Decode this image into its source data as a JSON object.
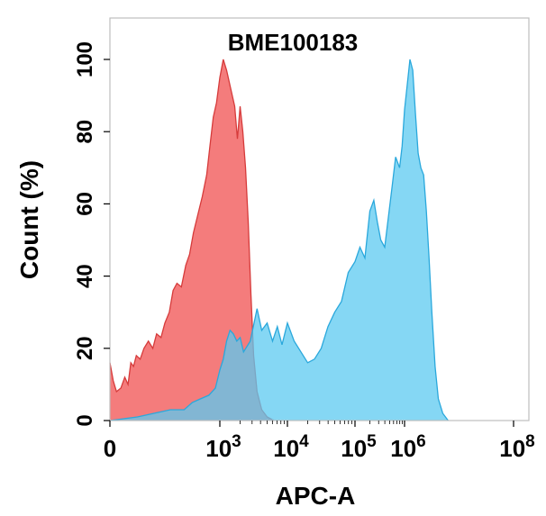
{
  "chart_data": {
    "type": "area",
    "title": "BME100183",
    "xlabel": "APC-A",
    "ylabel": "Count (%)",
    "ylim": [
      0,
      105
    ],
    "y_ticks": [
      {
        "value": 0,
        "label": "0"
      },
      {
        "value": 20,
        "label": "20"
      },
      {
        "value": 40,
        "label": "40"
      },
      {
        "value": 60,
        "label": "60"
      },
      {
        "value": 80,
        "label": "80"
      },
      {
        "value": 100,
        "label": "100"
      }
    ],
    "x_scale": "biexponential",
    "x_ticks": [
      {
        "value": "0",
        "base": "0",
        "exp": ""
      },
      {
        "value": "10^3",
        "base": "10",
        "exp": "3"
      },
      {
        "value": "10^4",
        "base": "10",
        "exp": "4"
      },
      {
        "value": "10^5",
        "base": "10",
        "exp": "5"
      },
      {
        "value": "10^6",
        "base": "10",
        "exp": "6"
      },
      {
        "value": "10^8",
        "base": "10",
        "exp": "8"
      }
    ],
    "grid": false,
    "series": [
      {
        "color": "#f26565",
        "points": [
          [
            0.0,
            16
          ],
          [
            0.06,
            11
          ],
          [
            0.12,
            8
          ],
          [
            0.2,
            9
          ],
          [
            0.27,
            12
          ],
          [
            0.33,
            10
          ],
          [
            0.38,
            16
          ],
          [
            0.43,
            15
          ],
          [
            0.48,
            18
          ],
          [
            0.55,
            17
          ],
          [
            0.62,
            20
          ],
          [
            0.7,
            22
          ],
          [
            0.78,
            20
          ],
          [
            0.85,
            24
          ],
          [
            0.93,
            23
          ],
          [
            1.0,
            27
          ],
          [
            1.08,
            30
          ],
          [
            1.15,
            36
          ],
          [
            1.22,
            38
          ],
          [
            1.3,
            37
          ],
          [
            1.38,
            43
          ],
          [
            1.45,
            46
          ],
          [
            1.52,
            52
          ],
          [
            1.6,
            57
          ],
          [
            1.68,
            62
          ],
          [
            1.76,
            68
          ],
          [
            1.82,
            76
          ],
          [
            1.88,
            84
          ],
          [
            1.94,
            88
          ],
          [
            2.0,
            95
          ],
          [
            2.05,
            100
          ],
          [
            2.1,
            97
          ],
          [
            2.16,
            92
          ],
          [
            2.22,
            87
          ],
          [
            2.26,
            78
          ],
          [
            2.3,
            87
          ],
          [
            2.34,
            80
          ],
          [
            2.38,
            70
          ],
          [
            2.42,
            55
          ],
          [
            2.46,
            35
          ],
          [
            2.5,
            18
          ],
          [
            2.55,
            8
          ],
          [
            2.62,
            3
          ],
          [
            2.7,
            1
          ],
          [
            2.8,
            0
          ]
        ]
      },
      {
        "color": "#5ccaf0",
        "points": [
          [
            0.0,
            0
          ],
          [
            0.25,
            0.5
          ],
          [
            0.5,
            1
          ],
          [
            0.8,
            2
          ],
          [
            1.1,
            3
          ],
          [
            1.35,
            3
          ],
          [
            1.5,
            5
          ],
          [
            1.65,
            6
          ],
          [
            1.8,
            7
          ],
          [
            1.92,
            9
          ],
          [
            2.0,
            14
          ],
          [
            2.05,
            17
          ],
          [
            2.1,
            22
          ],
          [
            2.15,
            25
          ],
          [
            2.2,
            24
          ],
          [
            2.25,
            22
          ],
          [
            2.3,
            23
          ],
          [
            2.35,
            19
          ],
          [
            2.45,
            22
          ],
          [
            2.55,
            31
          ],
          [
            2.62,
            25
          ],
          [
            2.7,
            27
          ],
          [
            2.78,
            22
          ],
          [
            2.85,
            26
          ],
          [
            2.92,
            21
          ],
          [
            3.0,
            27
          ],
          [
            3.1,
            22
          ],
          [
            3.2,
            19
          ],
          [
            3.3,
            16
          ],
          [
            3.4,
            17
          ],
          [
            3.5,
            20
          ],
          [
            3.6,
            26
          ],
          [
            3.7,
            30
          ],
          [
            3.8,
            33
          ],
          [
            3.9,
            41
          ],
          [
            4.0,
            44
          ],
          [
            4.1,
            48
          ],
          [
            4.2,
            45
          ],
          [
            4.3,
            58
          ],
          [
            4.38,
            61
          ],
          [
            4.45,
            55
          ],
          [
            4.52,
            50
          ],
          [
            4.6,
            48
          ],
          [
            4.68,
            57
          ],
          [
            4.75,
            65
          ],
          [
            4.82,
            73
          ],
          [
            4.9,
            70
          ],
          [
            4.95,
            76
          ],
          [
            5.0,
            86
          ],
          [
            5.05,
            93
          ],
          [
            5.1,
            100
          ],
          [
            5.15,
            97
          ],
          [
            5.2,
            85
          ],
          [
            5.25,
            74
          ],
          [
            5.3,
            70
          ],
          [
            5.35,
            68
          ],
          [
            5.4,
            58
          ],
          [
            5.45,
            45
          ],
          [
            5.5,
            30
          ],
          [
            5.56,
            15
          ],
          [
            5.62,
            6
          ],
          [
            5.7,
            2
          ],
          [
            5.8,
            0
          ]
        ]
      }
    ]
  }
}
